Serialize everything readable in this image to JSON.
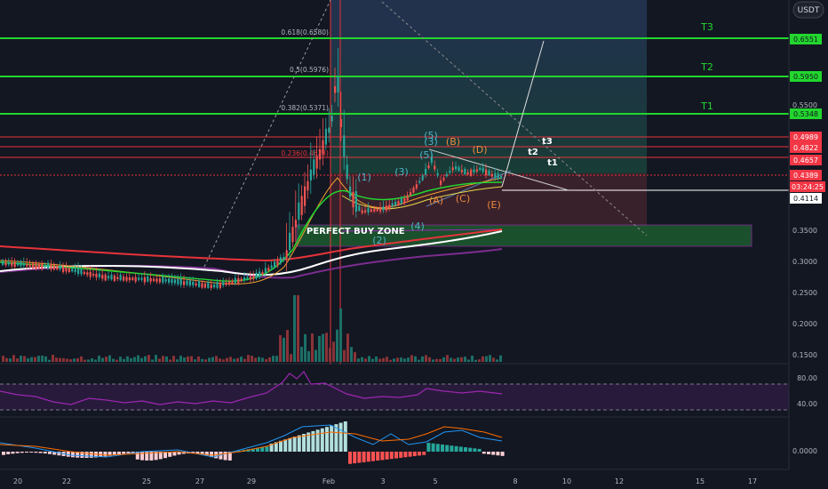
{
  "currency_label": "USDT",
  "price_axis": {
    "ticks": [
      "0.5500",
      "0.3500",
      "0.3000",
      "0.2500",
      "0.2000",
      "0.1500"
    ],
    "badges": [
      {
        "label": "0.6551",
        "kind": "target"
      },
      {
        "label": "0.5950",
        "kind": "target"
      },
      {
        "label": "0.5348",
        "kind": "target"
      },
      {
        "label": "0.4989",
        "kind": "resistance"
      },
      {
        "label": "0.4822",
        "kind": "resistance"
      },
      {
        "label": "0.4657",
        "kind": "resistance"
      },
      {
        "label": "0.4389",
        "kind": "resistance"
      },
      {
        "label": "03:24:25",
        "kind": "countdown"
      },
      {
        "label": "0.4114",
        "kind": "support"
      }
    ]
  },
  "rsi_axis": {
    "ticks": [
      "80.00",
      "40.00"
    ]
  },
  "macd_axis": {
    "ticks": [
      "0.0000"
    ]
  },
  "time_axis": {
    "ticks": [
      "20",
      "22",
      "25",
      "27",
      "29",
      "Feb",
      "3",
      "5",
      "8",
      "10",
      "12",
      "15",
      "17"
    ]
  },
  "targets": [
    {
      "label": "T3"
    },
    {
      "label": "T2"
    },
    {
      "label": "T1"
    }
  ],
  "fib_levels": [
    {
      "label": "0.618(0.6580)"
    },
    {
      "label": "0.5(0.5976)"
    },
    {
      "label": "0.382(0.5371)"
    },
    {
      "label": "0.236(0.4623)"
    }
  ],
  "buy_zone": {
    "label": "PERFECT BUY ZONE"
  },
  "wave_labels": {
    "impulse": [
      "(1)",
      "(2)",
      "(3)",
      "(4)",
      "(5)",
      "(3)",
      "(5)"
    ],
    "corrective": [
      "(A)",
      "(B)",
      "(C)",
      "(D)",
      "(E)"
    ],
    "projection": [
      "t3",
      "t2",
      "t1"
    ]
  },
  "colors": {
    "background": "#131722",
    "target_line": "#22d62e",
    "resistance_line": "#e8333a",
    "up_candle": "#26a69a",
    "down_candle": "#ef5350",
    "rsi_line": "#9c27b0",
    "impulse_label": "#4fb3c9",
    "corrective_label": "#f08a3c"
  }
}
